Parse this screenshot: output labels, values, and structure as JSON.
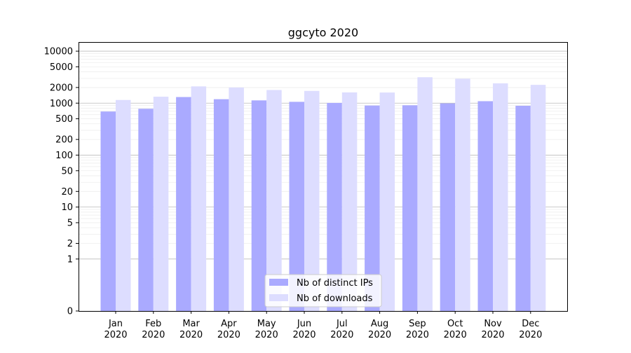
{
  "chart_data": {
    "type": "bar",
    "title": "ggcyto 2020",
    "xlabel": "",
    "ylabel": "",
    "yscale": "symlog",
    "ylim": [
      0,
      15000
    ],
    "yticks": [
      0,
      1,
      2,
      5,
      10,
      20,
      50,
      100,
      200,
      500,
      1000,
      2000,
      5000,
      10000
    ],
    "ytick_labels": [
      "0",
      "1",
      "2",
      "5",
      "10",
      "20",
      "50",
      "100",
      "200",
      "500",
      "1000",
      "2000",
      "5000",
      "10000"
    ],
    "grid": true,
    "legend_position": "lower center",
    "categories": [
      "Jan\n2020",
      "Feb\n2020",
      "Mar\n2020",
      "Apr\n2020",
      "May\n2020",
      "Jun\n2020",
      "Jul\n2020",
      "Aug\n2020",
      "Sep\n2020",
      "Oct\n2020",
      "Nov\n2020",
      "Dec\n2020"
    ],
    "series": [
      {
        "name": "Nb of distinct IPs",
        "color": "#aaaaff",
        "values": [
          690,
          780,
          1310,
          1190,
          1130,
          1060,
          1010,
          900,
          910,
          990,
          1090,
          890
        ]
      },
      {
        "name": "Nb of downloads",
        "color": "#ddddff",
        "values": [
          1150,
          1330,
          2100,
          2000,
          1790,
          1720,
          1610,
          1600,
          3150,
          2950,
          2400,
          2250
        ]
      }
    ]
  }
}
